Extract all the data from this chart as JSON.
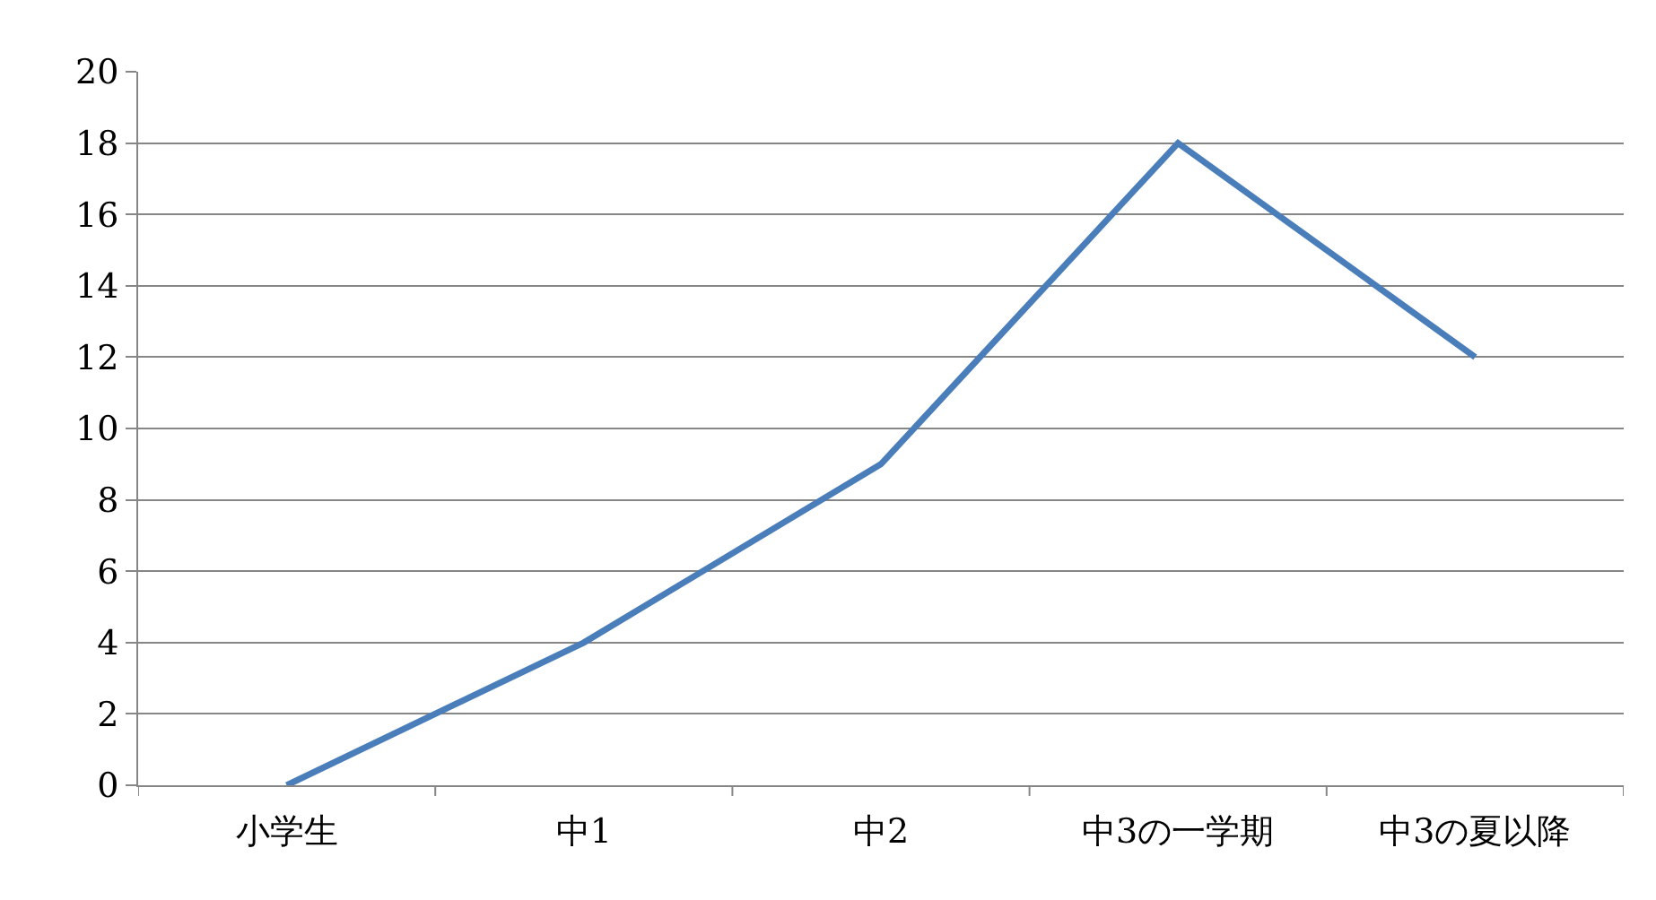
{
  "chart_data": {
    "type": "line",
    "categories": [
      "小学生",
      "中1",
      "中2",
      "中3の一学期",
      "中3の夏以降"
    ],
    "series": [
      {
        "color": "#4a7ebb",
        "values": [
          0,
          4,
          9,
          18,
          12
        ]
      }
    ],
    "ylim": [
      0,
      20
    ],
    "yticks": [
      0,
      2,
      4,
      6,
      8,
      10,
      12,
      14,
      16,
      18,
      20
    ],
    "grid": "y",
    "marker": "none",
    "line_style": "solid"
  }
}
